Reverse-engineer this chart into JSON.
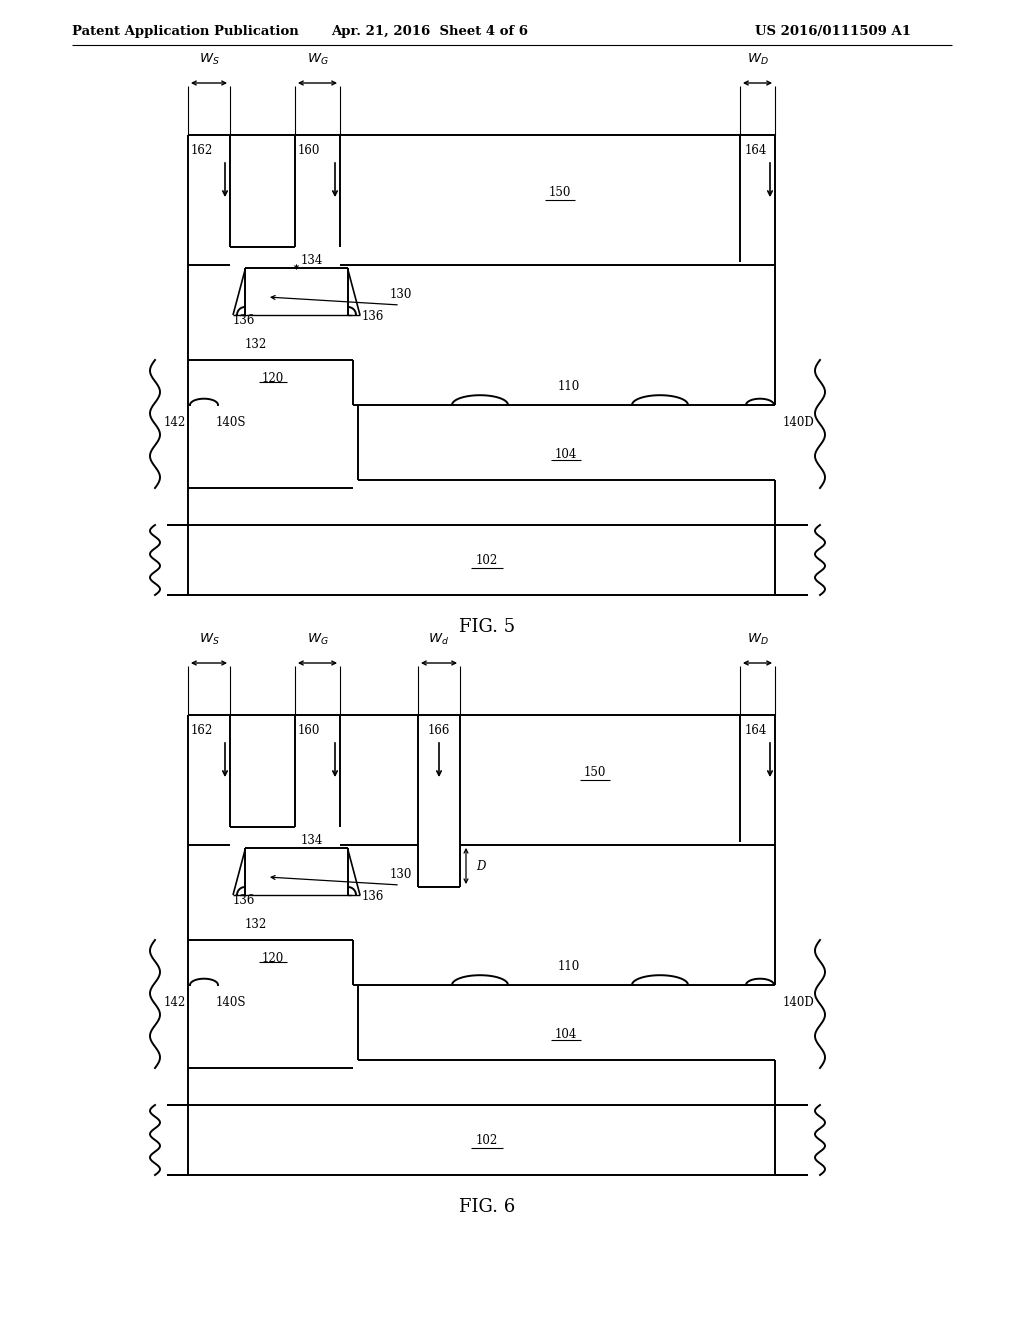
{
  "bg_color": "#ffffff",
  "line_color": "#000000",
  "header_left": "Patent Application Publication",
  "header_mid": "Apr. 21, 2016  Sheet 4 of 6",
  "header_right": "US 2016/0111509 A1",
  "fig5_label": "FIG. 5",
  "fig6_label": "FIG. 6"
}
